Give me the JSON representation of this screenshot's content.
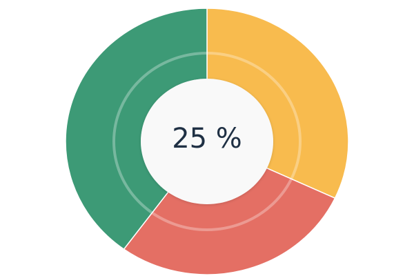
{
  "chart_data": {
    "type": "pie",
    "donut": true,
    "center_label": "25 %",
    "values": [
      32,
      28,
      40
    ],
    "colors": [
      "#f8bb4e",
      "#e46f64",
      "#3d9a76"
    ]
  }
}
